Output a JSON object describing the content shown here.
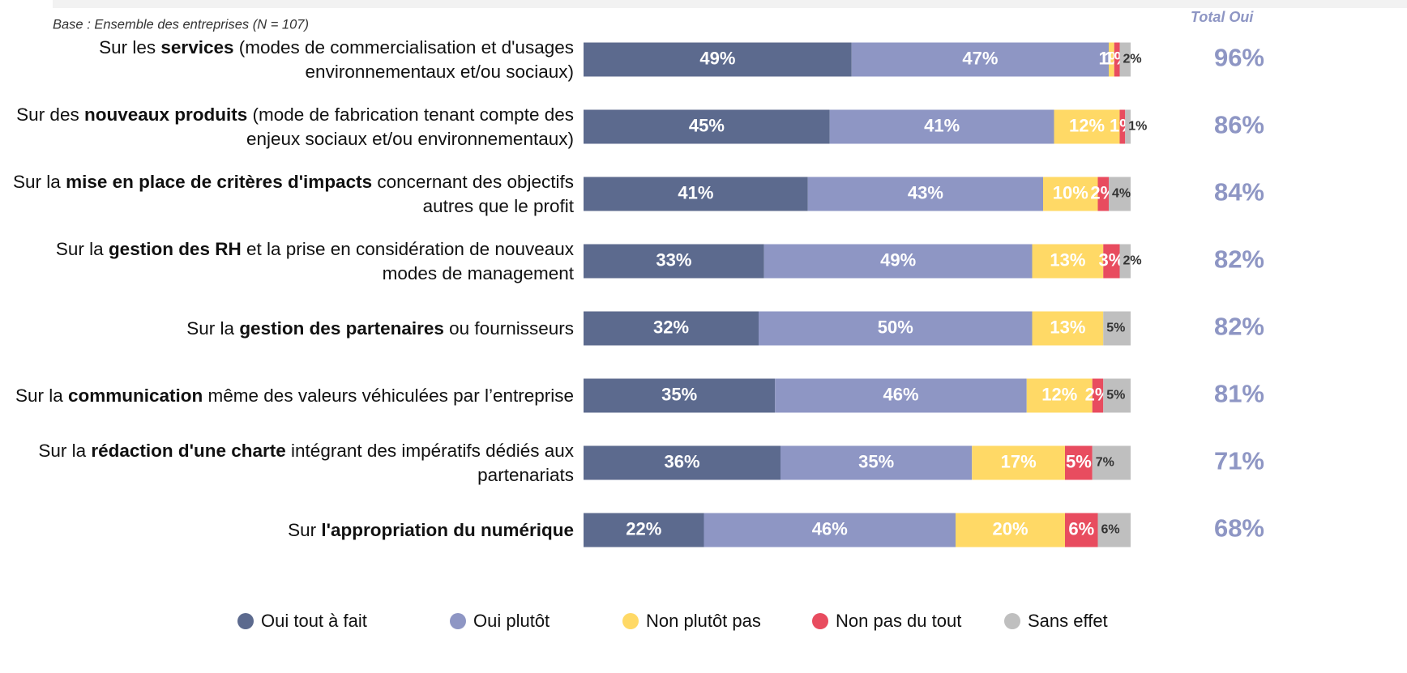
{
  "chart_data": {
    "type": "stacked_bar_horizontal",
    "subtitle": "Base : Ensemble des entreprises  (N = 107)",
    "categories": [
      [
        "Sur les ",
        "services",
        " (modes de commercialisation et d'usages environnementaux et/ou sociaux)"
      ],
      [
        "Sur des ",
        "nouveaux produits",
        " (mode de fabrication tenant compte des enjeux sociaux et/ou environnementaux)"
      ],
      [
        "Sur la ",
        "mise en place de critères d'impacts",
        " concernant des objectifs autres que le profit"
      ],
      [
        "Sur la ",
        "gestion des RH",
        " et la prise en considération de nouveaux modes de management"
      ],
      [
        "Sur la ",
        "gestion des partenaires",
        " ou fournisseurs"
      ],
      [
        "Sur la ",
        "communication",
        " même des valeurs véhiculées par l’entreprise"
      ],
      [
        "Sur la ",
        "rédaction d'une charte",
        " intégrant des impératifs dédiés aux partenariats"
      ],
      [
        "Sur ",
        "l'appropriation du numérique",
        ""
      ]
    ],
    "series": [
      {
        "name": "Oui tout à fait",
        "color": "#5c6a8e",
        "values": [
          49,
          45,
          41,
          33,
          32,
          35,
          36,
          22
        ],
        "value_labels": [
          "49%",
          "45%",
          "41%",
          "33%",
          "32%",
          "35%",
          "36%",
          "22%"
        ]
      },
      {
        "name": "Oui plutôt",
        "color": "#8e96c4",
        "values": [
          47,
          41,
          43,
          49,
          50,
          46,
          35,
          46
        ],
        "value_labels": [
          "47%",
          "41%",
          "43%",
          "49%",
          "50%",
          "46%",
          "35%",
          "46%"
        ]
      },
      {
        "name": "Non plutôt pas",
        "color": "#ffd966",
        "values": [
          1,
          12,
          10,
          13,
          13,
          12,
          17,
          20
        ],
        "value_labels": [
          "1%",
          "12%",
          "10%",
          "13%",
          "13%",
          "12%",
          "17%",
          "20%"
        ]
      },
      {
        "name": "Non pas du tout",
        "color": "#e84c5f",
        "values": [
          1,
          1,
          2,
          3,
          null,
          2,
          5,
          6
        ],
        "value_labels": [
          "1%",
          "1%",
          "2%",
          "3%",
          null,
          "2%",
          "5%",
          "6%"
        ]
      },
      {
        "name": "Sans effet",
        "color": "#bfbfbf",
        "values": [
          2,
          1,
          4,
          2,
          5,
          5,
          7,
          6
        ],
        "value_labels": [
          "2%",
          "1%",
          "4%",
          "2%",
          "5%",
          "5%",
          "7%",
          "6%"
        ]
      }
    ],
    "xlim": [
      0,
      100
    ],
    "totals": {
      "title": "Total Oui",
      "color": "#8e96c4",
      "values": [
        96,
        86,
        84,
        82,
        82,
        81,
        71,
        68
      ],
      "value_labels": [
        "96%",
        "86%",
        "84%",
        "82%",
        "82%",
        "81%",
        "71%",
        "68%"
      ]
    }
  }
}
